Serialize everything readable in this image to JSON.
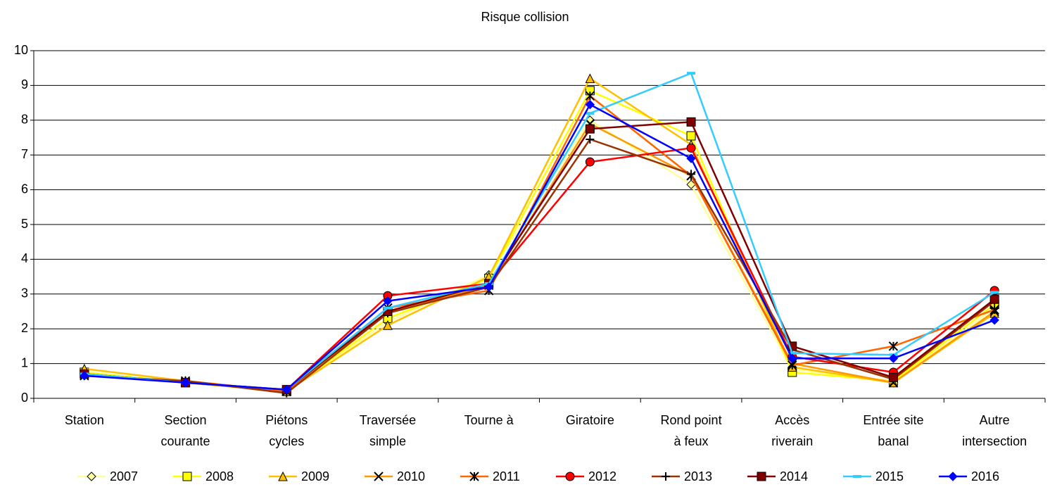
{
  "chart_data": {
    "type": "line",
    "title": "Risque collision",
    "categories": [
      "Station",
      "Section\ncourante",
      "Piétons\ncycles",
      "Traversée\nsimple",
      "Tourne à",
      "Giratoire",
      "Rond point\nà feux",
      "Accès\nriverain",
      "Entrée site\nbanal",
      "Autre\nintersection"
    ],
    "ylim": [
      0,
      10
    ],
    "yticks": [
      0,
      1,
      2,
      3,
      4,
      5,
      6,
      7,
      8,
      9,
      10
    ],
    "grid": true,
    "legend": "bottom",
    "series": [
      {
        "name": "2007",
        "color": "#ffff99",
        "marker": "diamond",
        "values": [
          0.7,
          0.45,
          0.2,
          2.2,
          3.55,
          8.0,
          6.15,
          0.85,
          0.45,
          2.6
        ]
      },
      {
        "name": "2008",
        "color": "#ffff00",
        "marker": "square",
        "values": [
          0.75,
          0.45,
          0.2,
          2.3,
          3.45,
          8.85,
          7.55,
          0.75,
          0.5,
          2.7
        ]
      },
      {
        "name": "2009",
        "color": "#ffc000",
        "marker": "triangle",
        "values": [
          0.85,
          0.5,
          0.2,
          2.1,
          3.5,
          9.2,
          7.3,
          0.9,
          0.45,
          2.45
        ]
      },
      {
        "name": "2010",
        "color": "#ff9900",
        "marker": "x",
        "values": [
          0.7,
          0.45,
          0.2,
          2.5,
          3.25,
          7.9,
          6.4,
          1.0,
          0.45,
          2.5
        ]
      },
      {
        "name": "2011",
        "color": "#ff6600",
        "marker": "star",
        "values": [
          0.65,
          0.5,
          0.2,
          2.6,
          3.1,
          8.7,
          6.4,
          0.95,
          1.5,
          2.55
        ]
      },
      {
        "name": "2012",
        "color": "#ff0000",
        "marker": "circle",
        "values": [
          0.7,
          0.45,
          0.25,
          2.95,
          3.3,
          6.8,
          7.2,
          1.2,
          0.75,
          3.1
        ]
      },
      {
        "name": "2013",
        "color": "#993300",
        "marker": "plus",
        "values": [
          0.65,
          0.5,
          0.15,
          2.45,
          3.2,
          7.45,
          6.45,
          1.4,
          0.55,
          2.8
        ]
      },
      {
        "name": "2014",
        "color": "#800000",
        "marker": "square",
        "values": [
          0.7,
          0.45,
          0.25,
          2.5,
          3.3,
          7.75,
          7.95,
          1.5,
          0.6,
          2.85
        ]
      },
      {
        "name": "2015",
        "color": "#33ccff",
        "marker": "dash",
        "values": [
          0.7,
          0.45,
          0.25,
          2.6,
          3.3,
          8.2,
          9.35,
          1.3,
          1.25,
          3.05
        ]
      },
      {
        "name": "2016",
        "color": "#0000ff",
        "marker": "diamond",
        "values": [
          0.65,
          0.45,
          0.25,
          2.8,
          3.2,
          8.45,
          6.9,
          1.15,
          1.15,
          2.25
        ]
      }
    ]
  }
}
